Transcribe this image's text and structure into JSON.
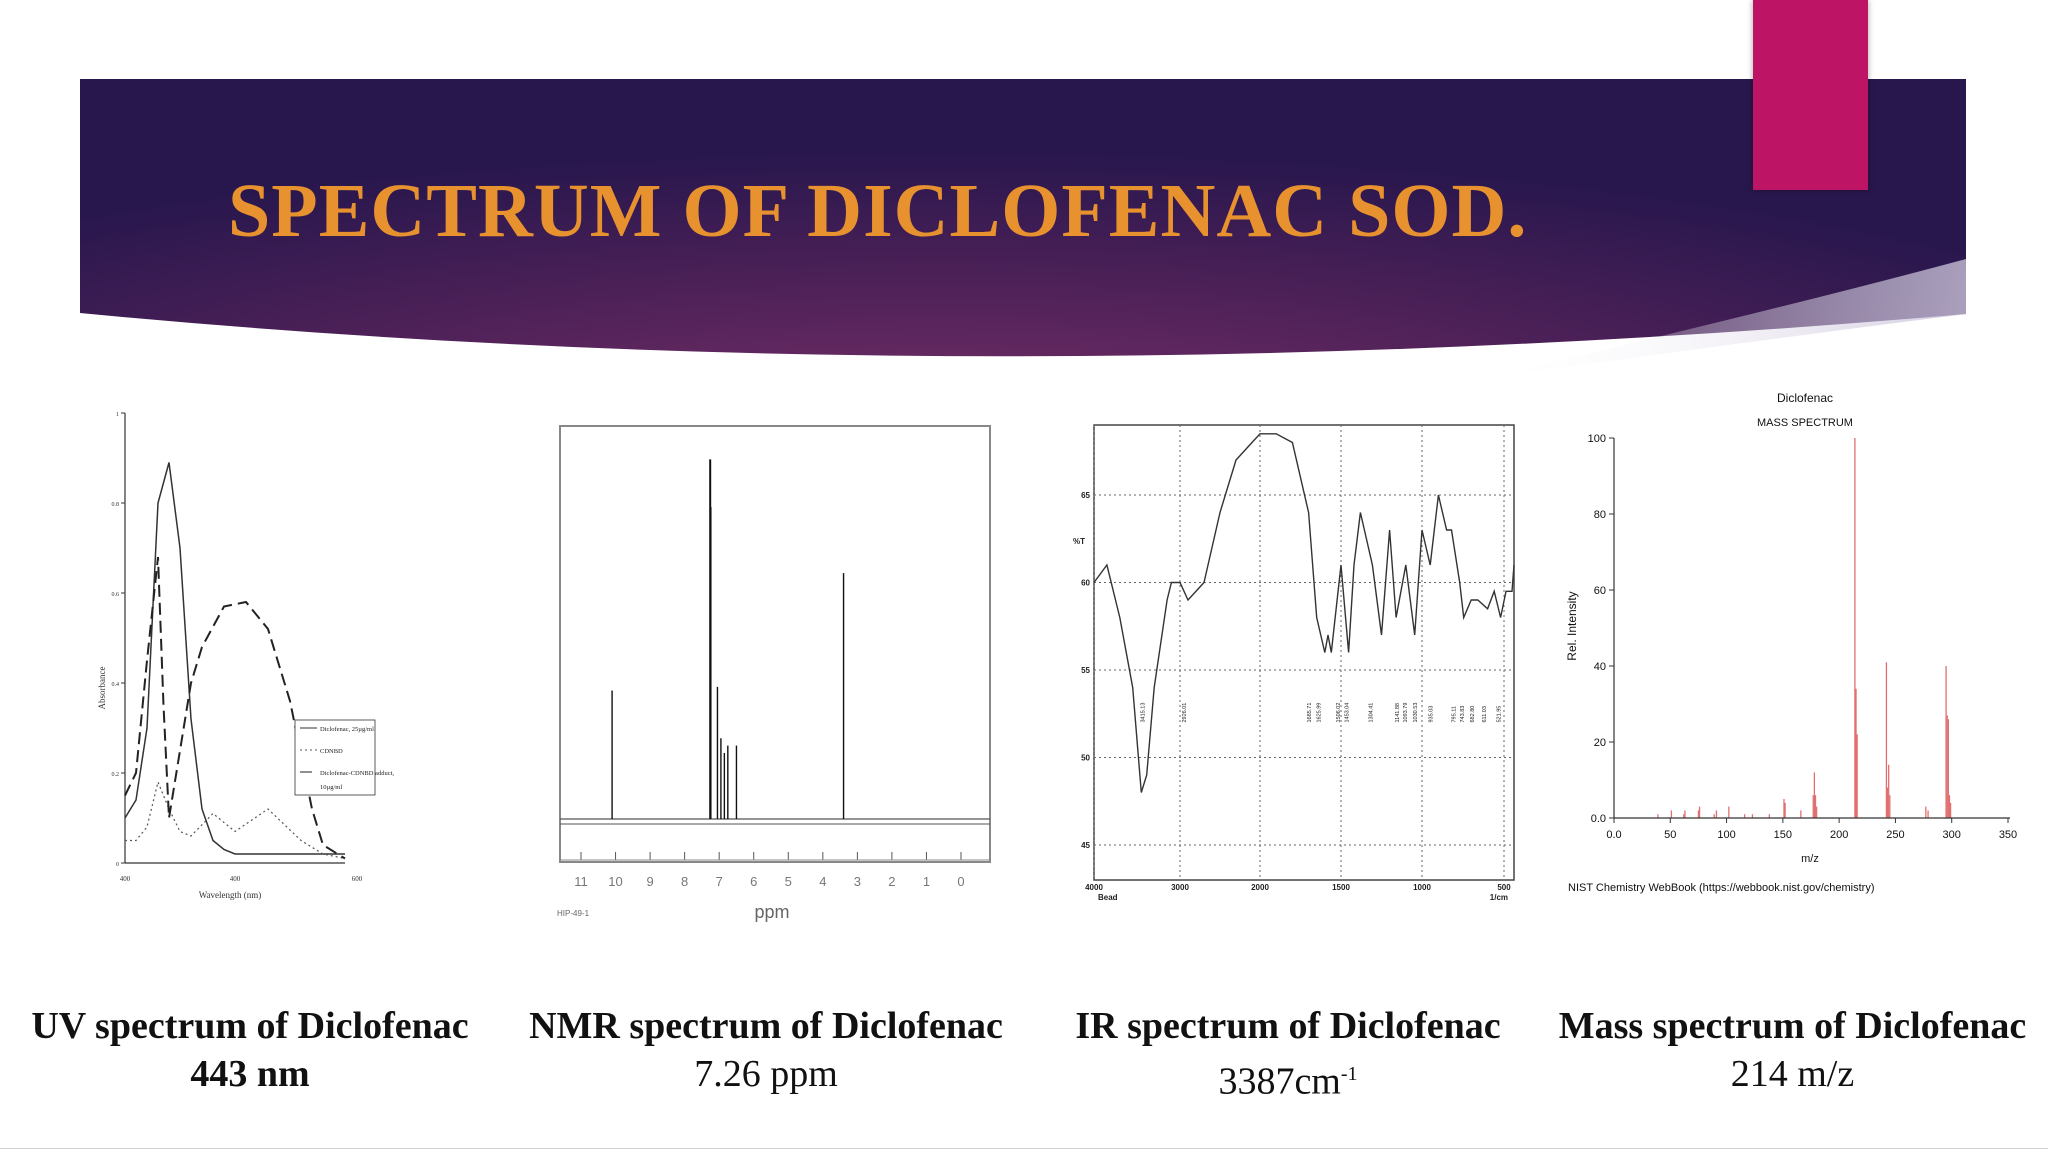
{
  "slide": {
    "title": "SPECTRUM OF DICLOFENAC SOD.",
    "colors": {
      "banner_dark": "#28174d",
      "banner_mid": "#6c2c62",
      "title": "#e8922f",
      "accent": "#be1466"
    }
  },
  "captions": [
    {
      "label": "UV spectrum of Diclofenac",
      "value": "443 nm"
    },
    {
      "label": "NMR spectrum of Diclofenac",
      "value": "7.26 ppm"
    },
    {
      "label": "IR spectrum of Diclofenac",
      "value": "3387cm",
      "superscript": "-1"
    },
    {
      "label": "Mass spectrum of Diclofenac",
      "value": "214 m/z"
    }
  ],
  "chart_data": [
    {
      "type": "line",
      "title": "",
      "xlabel": "Wavelength (nm)",
      "ylabel": "Absorbance",
      "xlim": [
        400,
        600
      ],
      "ylim": [
        0,
        1
      ],
      "x_ticks": [
        "400",
        "400",
        "600"
      ],
      "y_ticks": [
        "0",
        "0.2",
        "0.4",
        "0.6",
        "0.8",
        "1"
      ],
      "legend": {
        "placement": "right",
        "entries": [
          "Diclofenac, 25µg/ml",
          "CDNBD",
          "Diclofenac-CDNBD adduct,",
          "10µg/ml"
        ]
      },
      "series": [
        {
          "name": "Diclofenac, 25µg/ml",
          "x": [
            400,
            410,
            420,
            430,
            440,
            450,
            460,
            470,
            480,
            490,
            500,
            520,
            560,
            600
          ],
          "y": [
            0.1,
            0.14,
            0.3,
            0.8,
            0.89,
            0.7,
            0.32,
            0.12,
            0.05,
            0.03,
            0.02,
            0.02,
            0.02,
            0.02
          ]
        },
        {
          "name": "CDNBD",
          "x": [
            400,
            410,
            420,
            430,
            440,
            450,
            460,
            480,
            500,
            530,
            560,
            580,
            600
          ],
          "y": [
            0.05,
            0.05,
            0.08,
            0.18,
            0.12,
            0.07,
            0.06,
            0.11,
            0.07,
            0.12,
            0.05,
            0.02,
            0.01
          ]
        },
        {
          "name": "Diclofenac-CDNBD adduct, 10µg/ml",
          "x": [
            400,
            410,
            420,
            430,
            435,
            440,
            450,
            460,
            470,
            490,
            510,
            530,
            550,
            570,
            580,
            600
          ],
          "y": [
            0.15,
            0.2,
            0.45,
            0.68,
            0.35,
            0.1,
            0.25,
            0.4,
            0.48,
            0.57,
            0.58,
            0.52,
            0.36,
            0.12,
            0.04,
            0.01
          ]
        }
      ]
    },
    {
      "type": "line",
      "title": "",
      "xlabel": "ppm",
      "x_ticks": [
        "11",
        "10",
        "9",
        "8",
        "7",
        "6",
        "5",
        "4",
        "3",
        "2",
        "1",
        "0"
      ],
      "xlim": [
        11,
        0
      ],
      "footer": "HIP-49-1",
      "peaks": [
        {
          "ppm": 10.1,
          "height": 0.35
        },
        {
          "ppm": 7.26,
          "height": 0.98
        },
        {
          "ppm": 7.25,
          "height": 0.85
        },
        {
          "ppm": 7.05,
          "height": 0.36
        },
        {
          "ppm": 6.95,
          "height": 0.22
        },
        {
          "ppm": 6.85,
          "height": 0.18
        },
        {
          "ppm": 6.75,
          "height": 0.2
        },
        {
          "ppm": 6.5,
          "height": 0.2
        },
        {
          "ppm": 3.4,
          "height": 0.67
        }
      ]
    },
    {
      "type": "line",
      "title": "",
      "ylabel": "%T",
      "xlabel": "1/cm",
      "x_ticks": [
        "4000",
        "3000",
        "2000",
        "1500",
        "1000",
        "500"
      ],
      "x_sub": "Bead",
      "y_ticks": [
        "45",
        "50",
        "55",
        "60",
        "65"
      ],
      "xlim": [
        4000,
        400
      ],
      "ylim": [
        43,
        69
      ],
      "series": [
        {
          "name": "",
          "x": [
            4000,
            3850,
            3700,
            3550,
            3450,
            3387,
            3300,
            3150,
            3100,
            3000,
            2900,
            2700,
            2500,
            2300,
            2100,
            2000,
            1900,
            1800,
            1700,
            1650,
            1600,
            1580,
            1560,
            1500,
            1453,
            1420,
            1380,
            1306,
            1250,
            1200,
            1160,
            1100,
            1045,
            1000,
            950,
            900,
            850,
            820,
            770,
            746,
            700,
            660,
            600,
            560,
            521,
            480,
            420,
            400
          ],
          "y": [
            60,
            61,
            58,
            54,
            48,
            49,
            54,
            59,
            60,
            60,
            59,
            60,
            64,
            67,
            68,
            68.5,
            68.5,
            68,
            64,
            58,
            56,
            57,
            56,
            61,
            56,
            61,
            64,
            61,
            57,
            63,
            58,
            61,
            57,
            63,
            61,
            65,
            63,
            63,
            60,
            58,
            59,
            59,
            58.5,
            59.5,
            58,
            59.5,
            59.5,
            61
          ]
        }
      ],
      "annotations": [
        "3415.13",
        "2926.01",
        "1685.71",
        "1625.99",
        "1506.02",
        "1453.04",
        "1304.41",
        "1141.88",
        "1093.79",
        "1030.53",
        "935.03",
        "795.11",
        "743.83",
        "682.80",
        "611.03",
        "521.95"
      ]
    },
    {
      "type": "bar",
      "title": "Diclofenac",
      "subtitle": "MASS SPECTRUM",
      "xlabel": "m/z",
      "ylabel": "Rel. Intensity",
      "xlim": [
        0,
        350
      ],
      "ylim": [
        0,
        100
      ],
      "x_ticks": [
        "0.0",
        "50",
        "100",
        "150",
        "200",
        "250",
        "300",
        "350"
      ],
      "y_ticks": [
        "0.0",
        "20",
        "40",
        "60",
        "80",
        "100"
      ],
      "footer": "NIST Chemistry WebBook (https://webbook.nist.gov/chemistry)",
      "x": [
        39,
        51,
        62,
        63,
        75,
        76,
        89,
        91,
        102,
        116,
        123,
        138,
        151,
        152,
        166,
        177,
        178,
        179,
        180,
        214,
        215,
        216,
        242,
        243,
        244,
        245,
        277,
        279,
        295,
        296,
        297,
        298,
        299
      ],
      "values": [
        1,
        2,
        1,
        2,
        2,
        3,
        1,
        2,
        3,
        1,
        1,
        1,
        5,
        4,
        2,
        6,
        12,
        6,
        3,
        100,
        34,
        22,
        41,
        8,
        14,
        6,
        3,
        2,
        40,
        27,
        26,
        6,
        4
      ]
    }
  ]
}
